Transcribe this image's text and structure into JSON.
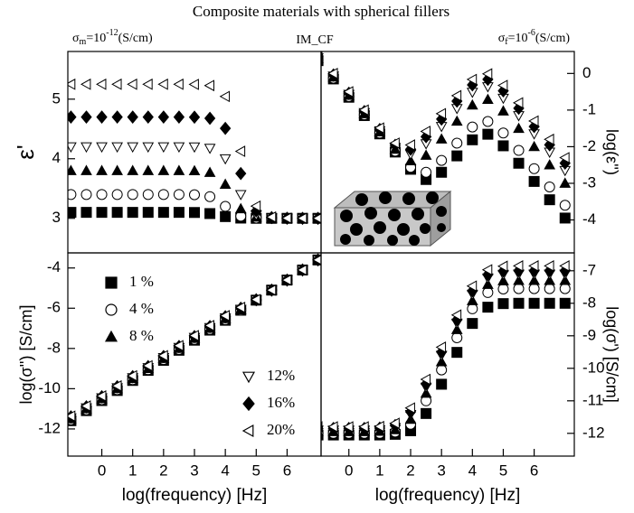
{
  "title": "Composite materials with spherical fillers",
  "annotations": {
    "matrix": {
      "symbol": "σ",
      "sub": "m",
      "base": "=10",
      "exp": "-12",
      "unit": "(S/cm)"
    },
    "model": "IM_CF",
    "filler": {
      "symbol": "σ",
      "sub": "f",
      "base": "=10",
      "exp": "-6",
      "unit": "(S/cm)"
    }
  },
  "chart_data": [
    {
      "type": "scatter",
      "ylabel": "ε'",
      "yaxis_side": "left",
      "xlim": [
        -1.1,
        7.1
      ],
      "ylim": [
        2.42,
        5.8
      ],
      "yticks": [
        3,
        4,
        5
      ],
      "x": [
        -1,
        -0.5,
        0,
        0.5,
        1,
        1.5,
        2,
        2.5,
        3,
        3.5,
        4,
        4.5,
        5,
        5.5,
        6,
        6.5,
        7
      ],
      "series": [
        {
          "marker": "square",
          "filled": true,
          "color": "#000000",
          "values": [
            3.1,
            3.1,
            3.1,
            3.1,
            3.1,
            3.1,
            3.1,
            3.1,
            3.098,
            3.08,
            3.029,
            3.004,
            3.0,
            3.0,
            3.0,
            3.0,
            3.0
          ]
        },
        {
          "marker": "circle",
          "filled": false,
          "color": "#000000",
          "values": [
            3.4,
            3.4,
            3.4,
            3.4,
            3.4,
            3.4,
            3.4,
            3.4,
            3.396,
            3.364,
            3.2,
            3.036,
            3.004,
            3.0,
            3.0,
            3.0,
            3.0
          ]
        },
        {
          "marker": "triangle-up",
          "filled": true,
          "color": "#000000",
          "values": [
            3.8,
            3.8,
            3.8,
            3.8,
            3.8,
            3.8,
            3.8,
            3.8,
            3.797,
            3.769,
            3.571,
            3.16,
            3.02,
            3.002,
            3.0,
            3.0,
            3.0
          ]
        },
        {
          "marker": "triangle-down",
          "filled": false,
          "color": "#000000",
          "values": [
            4.2,
            4.2,
            4.2,
            4.2,
            4.2,
            4.2,
            4.2,
            4.2,
            4.198,
            4.176,
            4.0,
            3.4,
            3.057,
            3.006,
            3.0,
            3.0,
            3.0
          ]
        },
        {
          "marker": "diamond",
          "filled": true,
          "color": "#000000",
          "values": [
            4.7,
            4.7,
            4.7,
            4.7,
            4.7,
            4.7,
            4.7,
            4.7,
            4.698,
            4.679,
            4.51,
            3.752,
            3.125,
            3.013,
            3.001,
            3.0,
            3.0
          ]
        },
        {
          "marker": "triangle-left",
          "filled": false,
          "color": "#000000",
          "values": [
            5.25,
            5.25,
            5.25,
            5.25,
            5.25,
            5.25,
            5.25,
            5.25,
            5.248,
            5.228,
            5.045,
            4.125,
            3.205,
            3.022,
            3.002,
            3.0,
            3.0
          ]
        }
      ]
    },
    {
      "type": "scatter",
      "ylabel": "log(ε'')",
      "yaxis_side": "right",
      "xlim": [
        -0.9,
        7.3
      ],
      "ylim": [
        -4.9,
        0.6
      ],
      "yticks": [
        0,
        -1,
        -2,
        -3,
        -4
      ],
      "x": [
        -1,
        -0.5,
        0,
        0.5,
        1,
        1.5,
        2,
        2.5,
        3,
        3.5,
        4,
        4.5,
        5,
        5.5,
        6,
        6.5,
        7
      ],
      "series": [
        {
          "marker": "square",
          "filled": true,
          "color": "#000000",
          "values": [
            0.35,
            -0.15,
            -0.65,
            -1.15,
            -1.65,
            -2.146,
            -2.617,
            -2.896,
            -2.699,
            -2.251,
            -1.812,
            -1.66,
            -1.976,
            -2.452,
            -2.949,
            -3.449,
            -3.949
          ]
        },
        {
          "marker": "circle",
          "filled": false,
          "color": "#000000",
          "values": [
            0.37,
            -0.13,
            -0.63,
            -1.13,
            -1.629,
            -2.122,
            -2.562,
            -2.699,
            -2.375,
            -1.903,
            -1.463,
            -1.311,
            -1.626,
            -2.102,
            -2.599,
            -3.099,
            -3.599
          ]
        },
        {
          "marker": "triangle-up",
          "filled": true,
          "color": "#000000",
          "values": [
            0.4,
            -0.1,
            -0.6,
            -1.1,
            -1.597,
            -2.073,
            -2.388,
            -2.235,
            -1.793,
            -1.305,
            -0.863,
            -0.711,
            -1.026,
            -1.502,
            -1.999,
            -2.499,
            -2.999
          ]
        },
        {
          "marker": "triangle-down",
          "filled": false,
          "color": "#000000",
          "values": [
            0.43,
            -0.07,
            -0.57,
            -1.07,
            -1.564,
            -2.017,
            -2.204,
            -1.918,
            -1.447,
            -0.956,
            -0.513,
            -0.361,
            -0.676,
            -1.152,
            -1.649,
            -2.149,
            -2.649
          ]
        },
        {
          "marker": "diamond",
          "filled": true,
          "color": "#000000",
          "values": [
            0.46,
            -0.04,
            -0.54,
            -1.04,
            -1.532,
            -1.962,
            -2.069,
            -1.727,
            -1.248,
            -0.756,
            -0.313,
            -0.161,
            -0.476,
            -0.952,
            -1.449,
            -1.949,
            -2.449
          ]
        },
        {
          "marker": "triangle-left",
          "filled": false,
          "color": "#000000",
          "values": [
            0.5,
            0.0,
            -0.5,
            -1.0,
            -1.489,
            -1.903,
            -1.953,
            -1.582,
            -1.098,
            -0.606,
            -0.163,
            -0.011,
            -0.326,
            -0.802,
            -1.299,
            -1.799,
            -2.299
          ]
        }
      ]
    },
    {
      "type": "scatter",
      "ylabel": "log(σ'') [S/cm]",
      "xlabel": "log(frequency) [Hz]",
      "yaxis_side": "left",
      "xlim": [
        -1.1,
        7.1
      ],
      "ylim": [
        -13.35,
        -3.25
      ],
      "yticks": [
        -4,
        -6,
        -8,
        -10,
        -12
      ],
      "xticks": [
        0,
        1,
        2,
        3,
        4,
        5,
        6
      ],
      "x": [
        -1,
        -0.5,
        0,
        0.5,
        1,
        1.5,
        2,
        2.5,
        3,
        3.5,
        4,
        4.5,
        5,
        5.5,
        6,
        6.5,
        7
      ],
      "series": [
        {
          "name": "1 %",
          "marker": "square",
          "filled": true,
          "color": "#000000",
          "values": [
            -11.59,
            -11.09,
            -10.59,
            -10.09,
            -9.59,
            -9.09,
            -8.59,
            -8.09,
            -7.59,
            -7.09,
            -6.6,
            -6.1,
            -5.6,
            -5.1,
            -4.6,
            -4.1,
            -3.6
          ]
        },
        {
          "name": "4 %",
          "marker": "circle",
          "filled": false,
          "color": "#000000",
          "values": [
            -11.55,
            -11.05,
            -10.55,
            -10.05,
            -9.55,
            -9.05,
            -8.55,
            -8.05,
            -7.55,
            -7.05,
            -6.57,
            -6.1,
            -5.6,
            -5.1,
            -4.6,
            -4.1,
            -3.6
          ]
        },
        {
          "name": "8 %",
          "marker": "triangle-up",
          "filled": true,
          "color": "#000000",
          "values": [
            -11.5,
            -11.0,
            -10.5,
            -10.0,
            -9.5,
            -9.0,
            -8.5,
            -8.0,
            -7.5,
            -7.0,
            -6.52,
            -6.08,
            -5.6,
            -5.1,
            -4.6,
            -4.1,
            -3.6
          ]
        },
        {
          "name": "12%",
          "marker": "triangle-down",
          "filled": false,
          "color": "#000000",
          "values": [
            -11.45,
            -10.95,
            -10.45,
            -9.95,
            -9.45,
            -8.95,
            -8.45,
            -7.95,
            -7.45,
            -6.96,
            -6.48,
            -6.05,
            -5.59,
            -5.1,
            -4.6,
            -4.1,
            -3.6
          ]
        },
        {
          "name": "16%",
          "marker": "diamond",
          "filled": true,
          "color": "#000000",
          "values": [
            -11.4,
            -10.9,
            -10.4,
            -9.9,
            -9.4,
            -8.9,
            -8.4,
            -7.9,
            -7.41,
            -6.91,
            -6.42,
            -6.0,
            -5.58,
            -5.1,
            -4.6,
            -4.1,
            -3.6
          ]
        },
        {
          "name": "20%",
          "marker": "triangle-left",
          "filled": false,
          "color": "#000000",
          "values": [
            -11.36,
            -10.86,
            -10.36,
            -9.86,
            -9.36,
            -8.86,
            -8.36,
            -7.86,
            -7.36,
            -6.86,
            -6.37,
            -5.96,
            -5.57,
            -5.1,
            -4.6,
            -4.1,
            -3.6
          ]
        }
      ]
    },
    {
      "type": "scatter",
      "ylabel": "log(σ') [S/cm]",
      "xlabel": "log(frequency) [Hz]",
      "yaxis_side": "right",
      "xlim": [
        -0.9,
        7.3
      ],
      "ylim": [
        -12.7,
        -6.45
      ],
      "yticks": [
        -7,
        -8,
        -9,
        -10,
        -11,
        -12
      ],
      "xticks": [
        0,
        1,
        2,
        3,
        4,
        5,
        6
      ],
      "x": [
        -1,
        -0.5,
        0,
        0.5,
        1,
        1.5,
        2,
        2.5,
        3,
        3.5,
        4,
        4.5,
        5,
        5.5,
        6,
        6.5,
        7
      ],
      "series": [
        {
          "marker": "square",
          "filled": true,
          "color": "#000000",
          "values": [
            -12.05,
            -12.05,
            -12.05,
            -12.05,
            -12.05,
            -12.03,
            -11.92,
            -11.39,
            -10.49,
            -9.51,
            -8.62,
            -8.12,
            -8.01,
            -8.0,
            -8.0,
            -8.0,
            -8.0
          ]
        },
        {
          "marker": "circle",
          "filled": false,
          "color": "#000000",
          "values": [
            -12.0,
            -12.0,
            -12.0,
            -12.0,
            -12.0,
            -11.96,
            -11.72,
            -11.0,
            -10.05,
            -9.06,
            -8.17,
            -7.67,
            -7.56,
            -7.55,
            -7.55,
            -7.55,
            -7.55
          ]
        },
        {
          "marker": "triangle-up",
          "filled": true,
          "color": "#000000",
          "values": [
            -11.95,
            -11.95,
            -11.95,
            -11.95,
            -11.94,
            -11.89,
            -11.57,
            -10.77,
            -9.8,
            -8.81,
            -7.92,
            -7.42,
            -7.31,
            -7.3,
            -7.3,
            -7.3,
            -7.3
          ]
        },
        {
          "marker": "triangle-down",
          "filled": false,
          "color": "#000000",
          "values": [
            -11.9,
            -11.9,
            -11.9,
            -11.9,
            -11.89,
            -11.82,
            -11.42,
            -10.58,
            -9.6,
            -8.61,
            -7.72,
            -7.22,
            -7.11,
            -7.1,
            -7.1,
            -7.1,
            -7.1
          ]
        },
        {
          "marker": "diamond",
          "filled": true,
          "color": "#000000",
          "values": [
            -11.85,
            -11.85,
            -11.85,
            -11.85,
            -11.84,
            -11.76,
            -11.34,
            -10.48,
            -9.5,
            -8.51,
            -7.62,
            -7.12,
            -7.01,
            -7.0,
            -7.0,
            -7.0,
            -7.0
          ]
        },
        {
          "marker": "triangle-left",
          "filled": false,
          "color": "#000000",
          "values": [
            -11.8,
            -11.8,
            -11.8,
            -11.8,
            -11.79,
            -11.69,
            -11.22,
            -10.34,
            -9.35,
            -8.36,
            -7.47,
            -6.97,
            -6.86,
            -6.85,
            -6.85,
            -6.85,
            -6.85
          ]
        }
      ]
    }
  ]
}
